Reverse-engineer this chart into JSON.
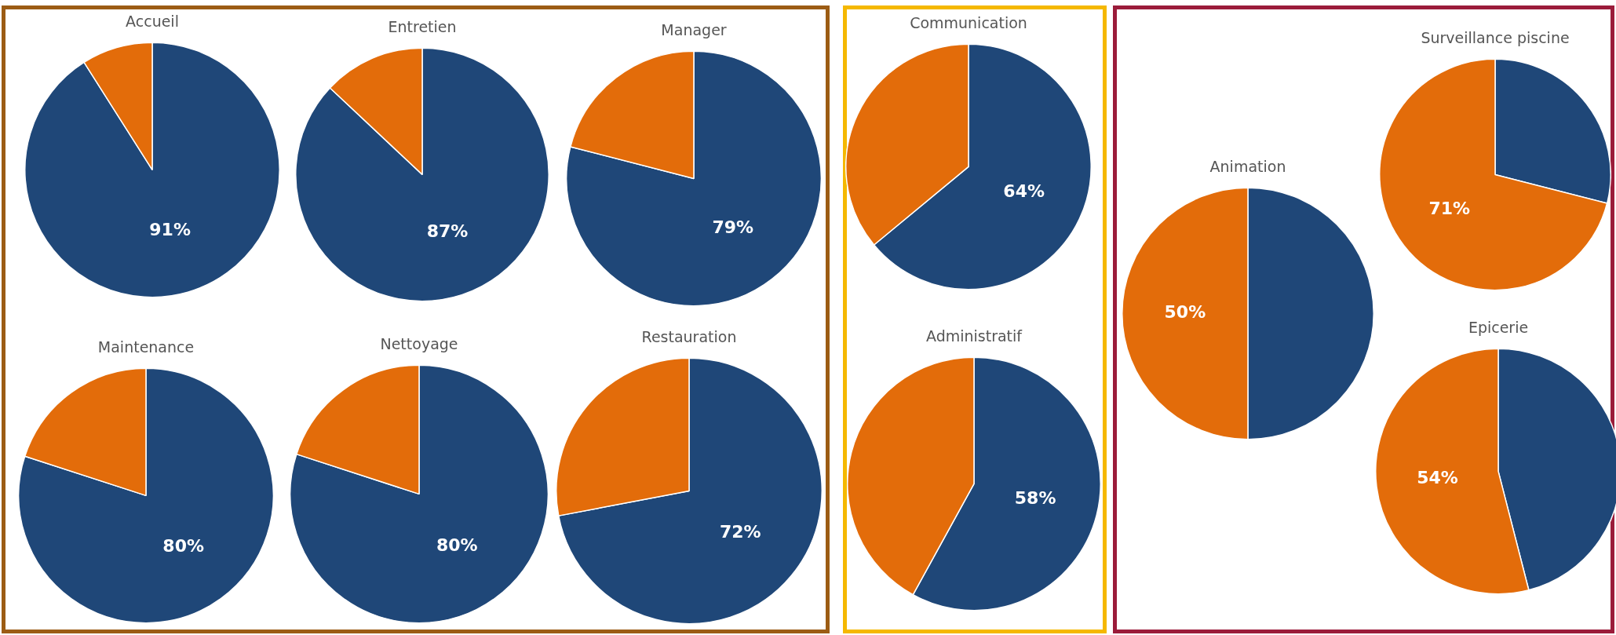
{
  "chart_data": [
    {
      "type": "pie",
      "title": "Accueil",
      "categories": [
        null,
        null
      ],
      "values": [
        91,
        9
      ],
      "colors": [
        "#1f4778",
        "#e36c0a"
      ],
      "value_labels": [
        "91%",
        null
      ]
    },
    {
      "type": "pie",
      "title": "Entretien",
      "categories": [
        null,
        null
      ],
      "values": [
        87,
        13
      ],
      "colors": [
        "#1f4778",
        "#e36c0a"
      ],
      "value_labels": [
        "87%",
        null
      ]
    },
    {
      "type": "pie",
      "title": "Manager",
      "categories": [
        null,
        null
      ],
      "values": [
        79,
        21
      ],
      "colors": [
        "#1f4778",
        "#e36c0a"
      ],
      "value_labels": [
        "79%",
        null
      ]
    },
    {
      "type": "pie",
      "title": "Maintenance",
      "categories": [
        null,
        null
      ],
      "values": [
        80,
        20
      ],
      "colors": [
        "#1f4778",
        "#e36c0a"
      ],
      "value_labels": [
        "80%",
        null
      ]
    },
    {
      "type": "pie",
      "title": "Nettoyage",
      "categories": [
        null,
        null
      ],
      "values": [
        80,
        20
      ],
      "colors": [
        "#1f4778",
        "#e36c0a"
      ],
      "value_labels": [
        "80%",
        null
      ]
    },
    {
      "type": "pie",
      "title": "Restauration",
      "categories": [
        null,
        null
      ],
      "values": [
        72,
        28
      ],
      "colors": [
        "#1f4778",
        "#e36c0a"
      ],
      "value_labels": [
        "72%",
        null
      ]
    },
    {
      "type": "pie",
      "title": "Communication",
      "categories": [
        null,
        null
      ],
      "values": [
        64,
        36
      ],
      "colors": [
        "#1f4778",
        "#e36c0a"
      ],
      "value_labels": [
        "64%",
        null
      ]
    },
    {
      "type": "pie",
      "title": "Administratif",
      "categories": [
        null,
        null
      ],
      "values": [
        58,
        42
      ],
      "colors": [
        "#1f4778",
        "#e36c0a"
      ],
      "value_labels": [
        "58%",
        null
      ]
    },
    {
      "type": "pie",
      "title": "Animation",
      "categories": [
        null,
        null
      ],
      "values": [
        50,
        50
      ],
      "colors": [
        "#1f4778",
        "#e36c0a"
      ],
      "value_labels": [
        null,
        "50%"
      ]
    },
    {
      "type": "pie",
      "title": "Surveillance piscine",
      "categories": [
        null,
        null
      ],
      "values": [
        29,
        71
      ],
      "colors": [
        "#1f4778",
        "#e36c0a"
      ],
      "value_labels": [
        null,
        "71%"
      ]
    },
    {
      "type": "pie",
      "title": "Epicerie",
      "categories": [
        null,
        null
      ],
      "values": [
        46,
        54
      ],
      "colors": [
        "#1f4778",
        "#e36c0a"
      ],
      "value_labels": [
        null,
        "54%"
      ]
    }
  ]
}
